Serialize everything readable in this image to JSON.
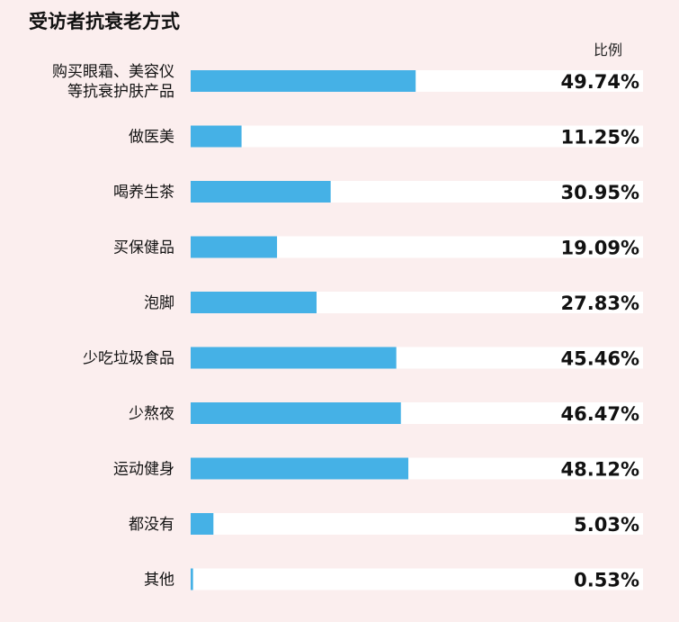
{
  "header": {
    "title": "受访者抗衰老方式",
    "column_header": "比例"
  },
  "colors": {
    "bar": "#45b1e6",
    "track": "#ffffff",
    "background": "#fbeeee"
  },
  "chart_data": {
    "type": "bar",
    "orientation": "horizontal",
    "title": "受访者抗衰老方式",
    "value_header": "比例",
    "unit": "%",
    "xlim": [
      0,
      100
    ],
    "categories": [
      "购买眼霜、美容仪\n等抗衰护肤产品",
      "做医美",
      "喝养生茶",
      "买保健品",
      "泡脚",
      "少吃垃圾食品",
      "少熬夜",
      "运动健身",
      "都没有",
      "其他"
    ],
    "values": [
      49.74,
      11.25,
      30.95,
      19.09,
      27.83,
      45.46,
      46.47,
      48.12,
      5.03,
      0.53
    ],
    "value_labels": [
      "49.74%",
      "11.25%",
      "30.95%",
      "19.09%",
      "27.83%",
      "45.46%",
      "46.47%",
      "48.12%",
      "5.03%",
      "0.53%"
    ],
    "grid": false,
    "legend": "none"
  }
}
